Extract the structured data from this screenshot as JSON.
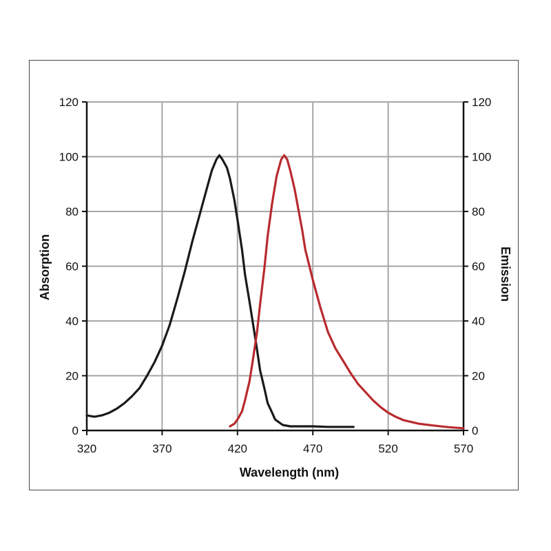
{
  "chart_data": {
    "type": "line",
    "xlabel": "Wavelength (nm)",
    "ylabel_left": "Absorption",
    "ylabel_right": "Emission",
    "xlim": [
      320,
      570
    ],
    "ylim": [
      0,
      120
    ],
    "x_ticks": [
      320,
      370,
      420,
      470,
      520,
      570
    ],
    "y_ticks": [
      0,
      20,
      40,
      60,
      80,
      100,
      120
    ],
    "grid": true,
    "series": [
      {
        "color": "#1a1a1a",
        "axis": "left",
        "x": [
          320,
          325,
          330,
          335,
          340,
          345,
          350,
          355,
          360,
          365,
          370,
          375,
          380,
          385,
          390,
          395,
          400,
          403,
          406,
          408,
          410,
          413,
          415,
          418,
          420,
          423,
          425,
          428,
          430,
          433,
          435,
          438,
          440,
          443,
          445,
          450,
          455,
          460,
          470,
          480,
          490,
          497
        ],
        "y": [
          5.5,
          5,
          5.5,
          6.5,
          8,
          10,
          12.5,
          15.5,
          20,
          25,
          31,
          38.5,
          48,
          58,
          69,
          79,
          89,
          95,
          99,
          100.5,
          99,
          96,
          92,
          84,
          77,
          66,
          57,
          47,
          40,
          29.5,
          22,
          15,
          10,
          6.5,
          4,
          2,
          1.5,
          1.5,
          1.5,
          1.3,
          1.3,
          1.3
        ]
      },
      {
        "color": "#b82a2e",
        "axis": "right",
        "x": [
          415,
          418,
          420,
          423,
          425,
          428,
          430,
          433,
          435,
          438,
          440,
          443,
          446,
          449,
          451,
          453,
          455,
          458,
          460,
          463,
          465,
          470,
          475,
          480,
          485,
          490,
          495,
          500,
          505,
          510,
          515,
          520,
          525,
          530,
          540,
          550,
          560,
          570
        ],
        "y": [
          1.5,
          2.5,
          4,
          7,
          11,
          18,
          25,
          36,
          46,
          60,
          71,
          83,
          93,
          99,
          100.5,
          99,
          95,
          88,
          82,
          73,
          66,
          55,
          45,
          36,
          30,
          25.5,
          21,
          17,
          14,
          11,
          8.5,
          6.5,
          5,
          3.8,
          2.5,
          1.8,
          1.2,
          0.8
        ]
      }
    ]
  }
}
